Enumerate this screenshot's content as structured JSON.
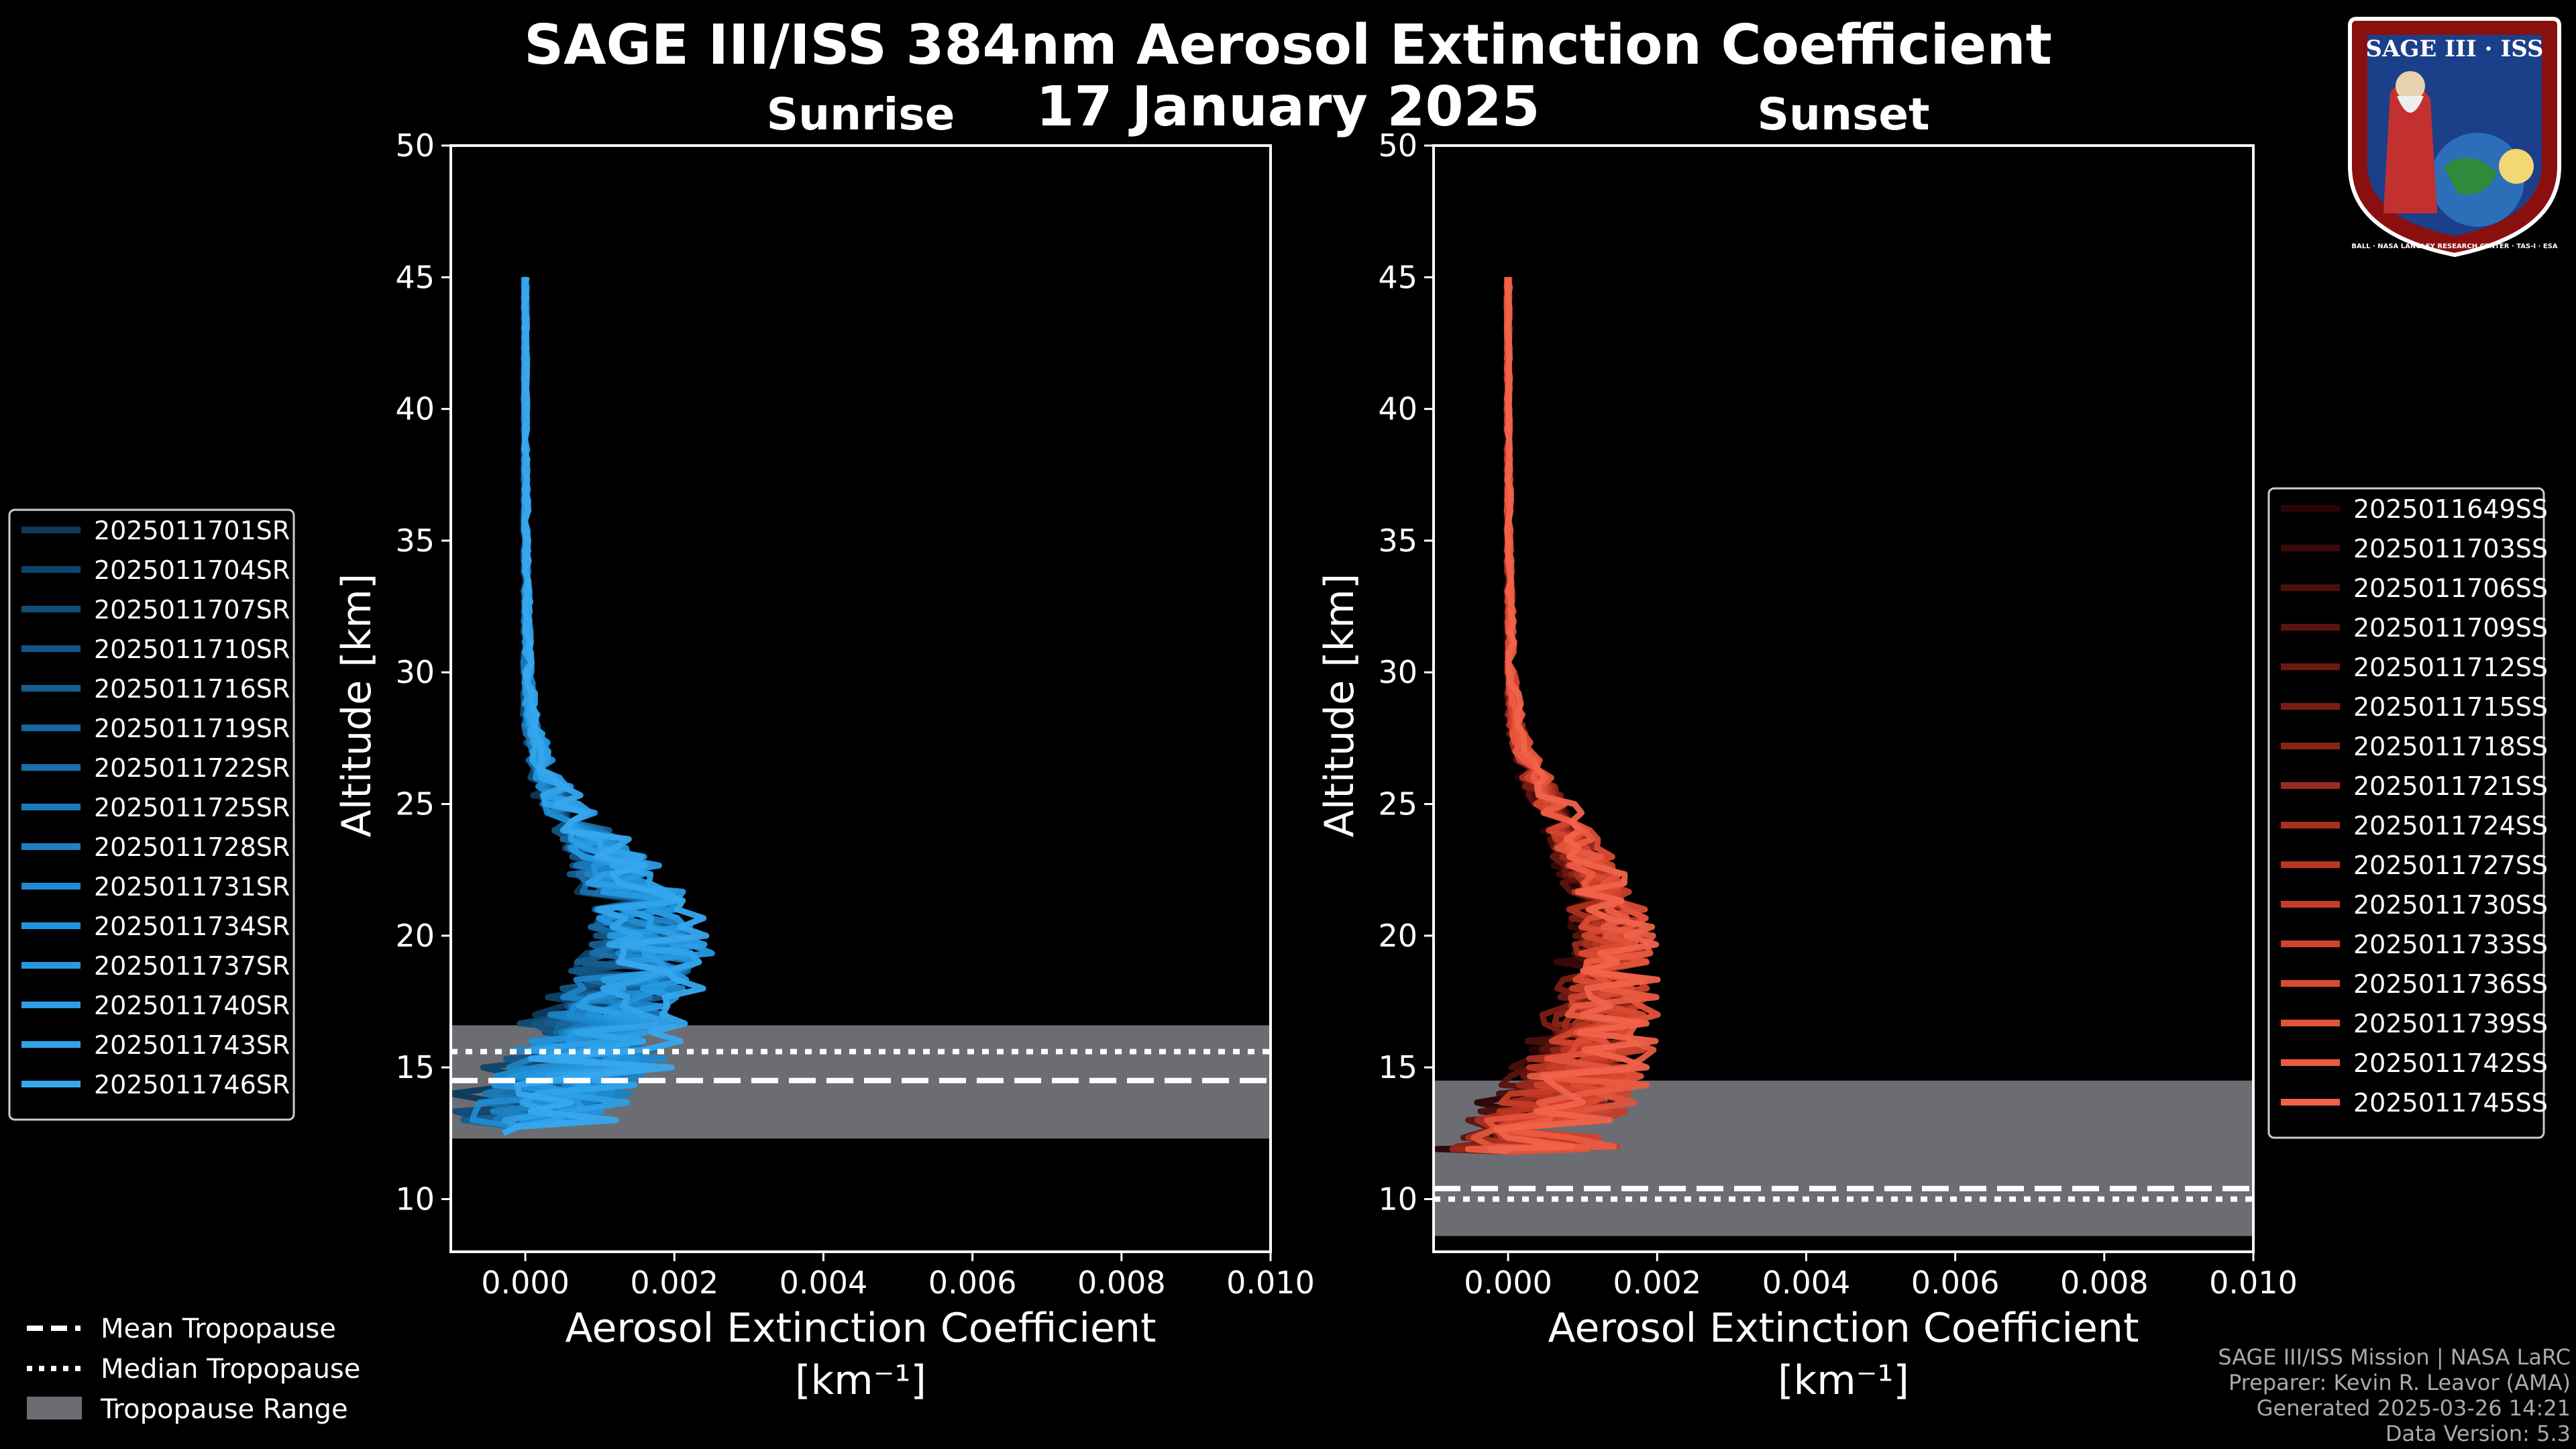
{
  "title": {
    "line1": "SAGE III/ISS 384nm Aerosol Extinction Coefficient",
    "line2": "17 January 2025"
  },
  "logo": {
    "text": "SAGE III · ISS",
    "ring_text": "BALL · NASA LANGLEY RESEARCH CENTER · TAS-I · ESA"
  },
  "credits": {
    "line1": "SAGE III/ISS Mission | NASA LaRC",
    "line2": "Preparer: Kevin R. Leavor (AMA)",
    "line3": "Generated 2025-03-26 14:21",
    "line4": "Data Version: 5.3"
  },
  "bottom_legend": {
    "items": [
      "Mean Tropopause",
      "Median Tropopause",
      "Tropopause Range"
    ]
  },
  "colors": {
    "background": "#000000",
    "sunrise_series": "#1f8fd6",
    "sunset_series": "#ec5a48",
    "tropopause_range": "#6b6d72"
  },
  "chart_data": [
    {
      "type": "line",
      "panel": "left",
      "title": "Sunrise",
      "xlabel": "Aerosol Extinction Coefficient",
      "xlabel_unit": "[km⁻¹]",
      "ylabel": "Altitude [km]",
      "xlim": [
        -0.001,
        0.01
      ],
      "ylim": [
        8,
        50
      ],
      "xticks": [
        0.0,
        0.002,
        0.004,
        0.006,
        0.008,
        0.01
      ],
      "xtick_labels": [
        "0.000",
        "0.002",
        "0.004",
        "0.006",
        "0.008",
        "0.010"
      ],
      "yticks": [
        10,
        15,
        20,
        25,
        30,
        35,
        40,
        45,
        50
      ],
      "tropopause": {
        "mean": 14.5,
        "median": 15.6,
        "range": [
          12.3,
          16.6
        ]
      },
      "legend_position": "left",
      "series_names": [
        "2025011701SR",
        "2025011704SR",
        "2025011707SR",
        "2025011710SR",
        "2025011716SR",
        "2025011719SR",
        "2025011722SR",
        "2025011725SR",
        "2025011728SR",
        "2025011731SR",
        "2025011734SR",
        "2025011737SR",
        "2025011740SR",
        "2025011743SR",
        "2025011746SR"
      ],
      "series_colors": [
        "#0d3a5c",
        "#0f4369",
        "#114c76",
        "#135583",
        "#155e90",
        "#17679d",
        "#1970aa",
        "#1b79b7",
        "#1d82c4",
        "#1f8bd1",
        "#2194dd",
        "#2699e2",
        "#2c9ee6",
        "#31a3ea",
        "#37a8ee"
      ],
      "profile": {
        "altitudes": [
          45,
          40,
          35,
          30,
          28,
          27,
          26,
          25,
          24,
          23,
          22,
          21,
          20,
          19,
          18,
          17,
          16,
          15,
          14,
          13,
          12.5
        ],
        "mean_values": [
          0.0,
          0.0,
          1e-05,
          3e-05,
          8e-05,
          0.00018,
          0.0003,
          0.0005,
          0.0008,
          0.0011,
          0.0013,
          0.0015,
          0.0017,
          0.0016,
          0.0014,
          0.0011,
          0.0009,
          0.0007,
          0.0004,
          0.0001,
          -0.0003
        ],
        "spread": [
          2e-05,
          2e-05,
          3e-05,
          5e-05,
          0.0001,
          0.00015,
          0.0002,
          0.0003,
          0.0004,
          0.0005,
          0.0006,
          0.0007,
          0.0007,
          0.0008,
          0.0008,
          0.0009,
          0.001,
          0.0011,
          0.0011,
          0.0009,
          0.0007
        ]
      }
    },
    {
      "type": "line",
      "panel": "right",
      "title": "Sunset",
      "xlabel": "Aerosol Extinction Coefficient",
      "xlabel_unit": "[km⁻¹]",
      "ylabel": "Altitude [km]",
      "xlim": [
        -0.001,
        0.01
      ],
      "ylim": [
        8,
        50
      ],
      "xticks": [
        0.0,
        0.002,
        0.004,
        0.006,
        0.008,
        0.01
      ],
      "xtick_labels": [
        "0.000",
        "0.002",
        "0.004",
        "0.006",
        "0.008",
        "0.010"
      ],
      "yticks": [
        10,
        15,
        20,
        25,
        30,
        35,
        40,
        45,
        50
      ],
      "tropopause": {
        "mean": 10.4,
        "median": 10.0,
        "range": [
          8.6,
          14.5
        ]
      },
      "legend_position": "right",
      "series_names": [
        "2025011649SS",
        "2025011703SS",
        "2025011706SS",
        "2025011709SS",
        "2025011712SS",
        "2025011715SS",
        "2025011718SS",
        "2025011721SS",
        "2025011724SS",
        "2025011727SS",
        "2025011730SS",
        "2025011733SS",
        "2025011736SS",
        "2025011739SS",
        "2025011742SS",
        "2025011745SS"
      ],
      "series_colors": [
        "#2a0505",
        "#3a0a08",
        "#4a0f0b",
        "#5a140e",
        "#6a1911",
        "#7a1e14",
        "#8a2417",
        "#9a2a1b",
        "#aa301f",
        "#b93623",
        "#c53d28",
        "#d0442e",
        "#da4b34",
        "#e3533b",
        "#ea5b42",
        "#f0634a"
      ],
      "profile": {
        "altitudes": [
          45,
          40,
          35,
          30,
          28,
          27,
          26,
          25,
          24,
          23,
          22,
          21,
          20,
          19,
          18,
          17,
          16,
          15,
          14,
          13,
          12,
          11.8
        ],
        "mean_values": [
          0.0,
          0.0,
          1e-05,
          4e-05,
          0.0001,
          0.00022,
          0.00038,
          0.0006,
          0.0008,
          0.001,
          0.0012,
          0.0013,
          0.0014,
          0.0014,
          0.0013,
          0.0012,
          0.0011,
          0.001,
          0.0008,
          0.0005,
          0.0003,
          0.0
        ],
        "spread": [
          2e-05,
          2e-05,
          3e-05,
          5e-05,
          0.0001,
          0.00015,
          0.0002,
          0.00025,
          0.0003,
          0.00035,
          0.0004,
          0.0005,
          0.0005,
          0.0006,
          0.0006,
          0.0007,
          0.0007,
          0.0008,
          0.0009,
          0.001,
          0.0011,
          0.0008
        ]
      }
    }
  ]
}
